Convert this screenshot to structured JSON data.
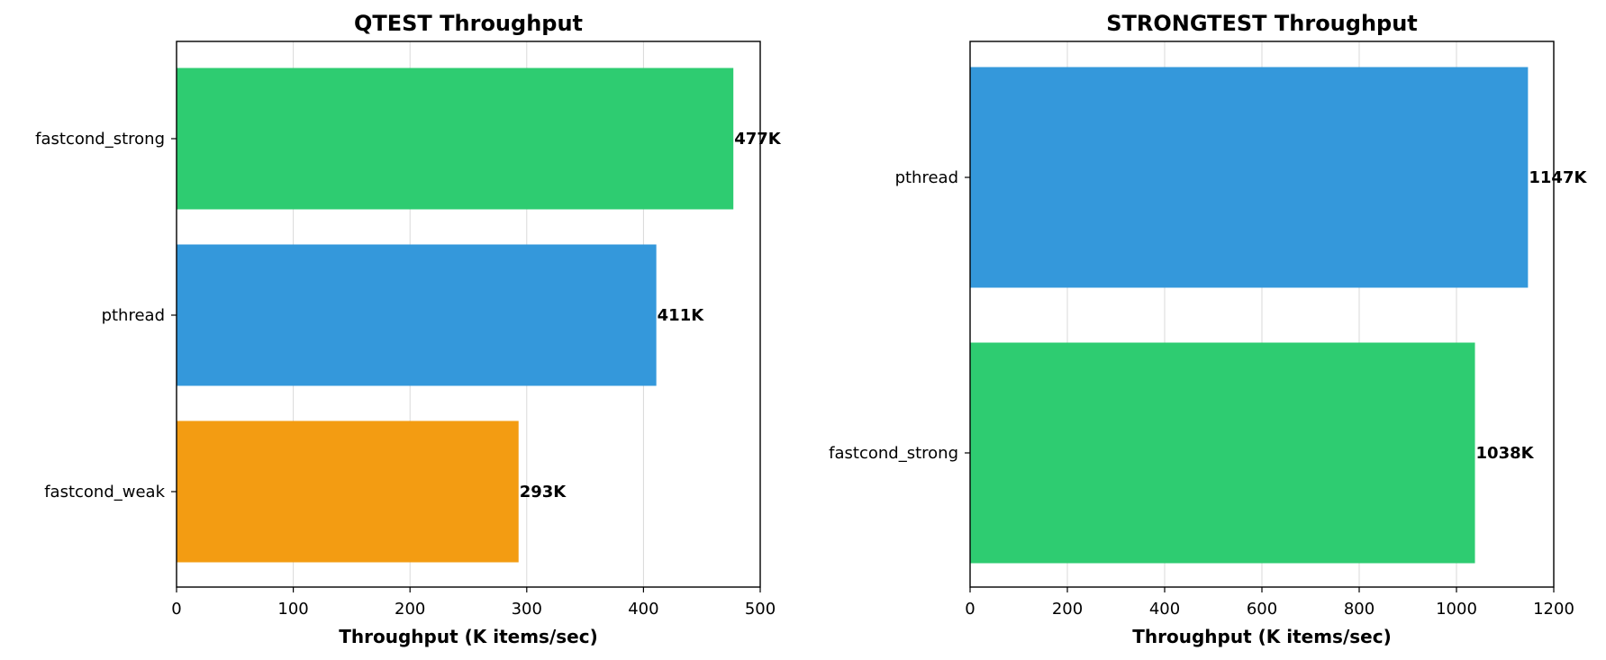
{
  "chart_data": [
    {
      "type": "bar",
      "orientation": "horizontal",
      "title": "QTEST Throughput",
      "xlabel": "Throughput (K items/sec)",
      "xlim": [
        0,
        500
      ],
      "xticks": [
        0,
        100,
        200,
        300,
        400,
        500
      ],
      "grid": "vertical",
      "categories": [
        "fastcond_strong",
        "pthread",
        "fastcond_weak"
      ],
      "values": [
        477,
        411,
        293
      ],
      "value_labels": [
        "477K",
        "411K",
        "293K"
      ],
      "colors": [
        "#2ecc71",
        "#3498db",
        "#f39c12"
      ]
    },
    {
      "type": "bar",
      "orientation": "horizontal",
      "title": "STRONGTEST Throughput",
      "xlabel": "Throughput (K items/sec)",
      "xlim": [
        0,
        1200
      ],
      "xticks": [
        0,
        200,
        400,
        600,
        800,
        1000,
        1200
      ],
      "grid": "vertical",
      "categories": [
        "pthread",
        "fastcond_strong"
      ],
      "values": [
        1147,
        1038
      ],
      "value_labels": [
        "1147K",
        "1038K"
      ],
      "colors": [
        "#3498db",
        "#2ecc71"
      ]
    }
  ]
}
